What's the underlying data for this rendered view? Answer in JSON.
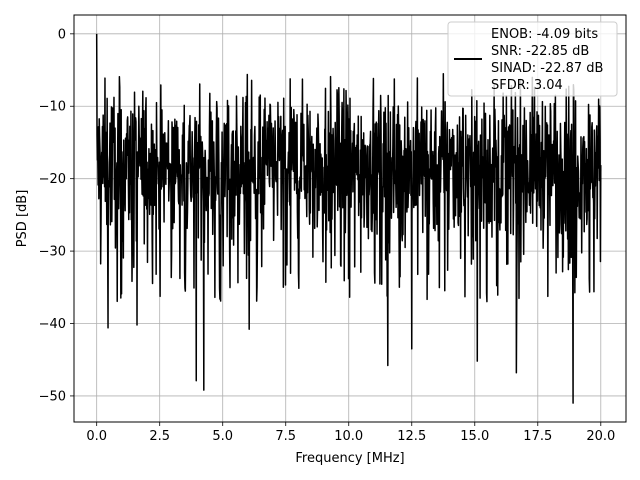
{
  "chart_data": {
    "type": "line",
    "title": "",
    "xlabel": "Frequency [MHz]",
    "ylabel": "PSD [dB]",
    "xlim": [
      -0.9,
      21.0
    ],
    "ylim": [
      -53.6,
      2.6
    ],
    "xticks": [
      0.0,
      2.5,
      5.0,
      7.5,
      10.0,
      12.5,
      15.0,
      17.5,
      20.0
    ],
    "xtick_labels": [
      "0.0",
      "2.5",
      "5.0",
      "7.5",
      "10.0",
      "12.5",
      "15.0",
      "17.5",
      "20.0"
    ],
    "yticks": [
      0,
      -10,
      -20,
      -30,
      -40,
      -50
    ],
    "ytick_labels": [
      "0",
      "−10",
      "−20",
      "−30",
      "−40",
      "−50"
    ],
    "grid": true,
    "legend_position": "top-right",
    "legend_lines": [
      "ENOB: -4.09 bits",
      "SNR: -22.85 dB",
      "SINAD: -22.87 dB",
      "SFDR: 3.04"
    ],
    "series": [
      {
        "color": "#000000",
        "summary": {
          "x_range": [
            0.0,
            20.0
          ],
          "peak": {
            "x": 0.0,
            "y": 0.0
          },
          "typical_band": [
            -30,
            -8
          ],
          "median": -18
        },
        "notable_dips": [
          {
            "x": 0.45,
            "y": -40.6
          },
          {
            "x": 1.6,
            "y": -40.2
          },
          {
            "x": 3.95,
            "y": -47.9
          },
          {
            "x": 4.25,
            "y": -49.2
          },
          {
            "x": 6.05,
            "y": -40.8
          },
          {
            "x": 11.55,
            "y": -45.8
          },
          {
            "x": 12.5,
            "y": -43.5
          },
          {
            "x": 15.1,
            "y": -45.2
          },
          {
            "x": 16.65,
            "y": -46.8
          },
          {
            "x": 18.9,
            "y": -51.0
          }
        ]
      }
    ]
  }
}
